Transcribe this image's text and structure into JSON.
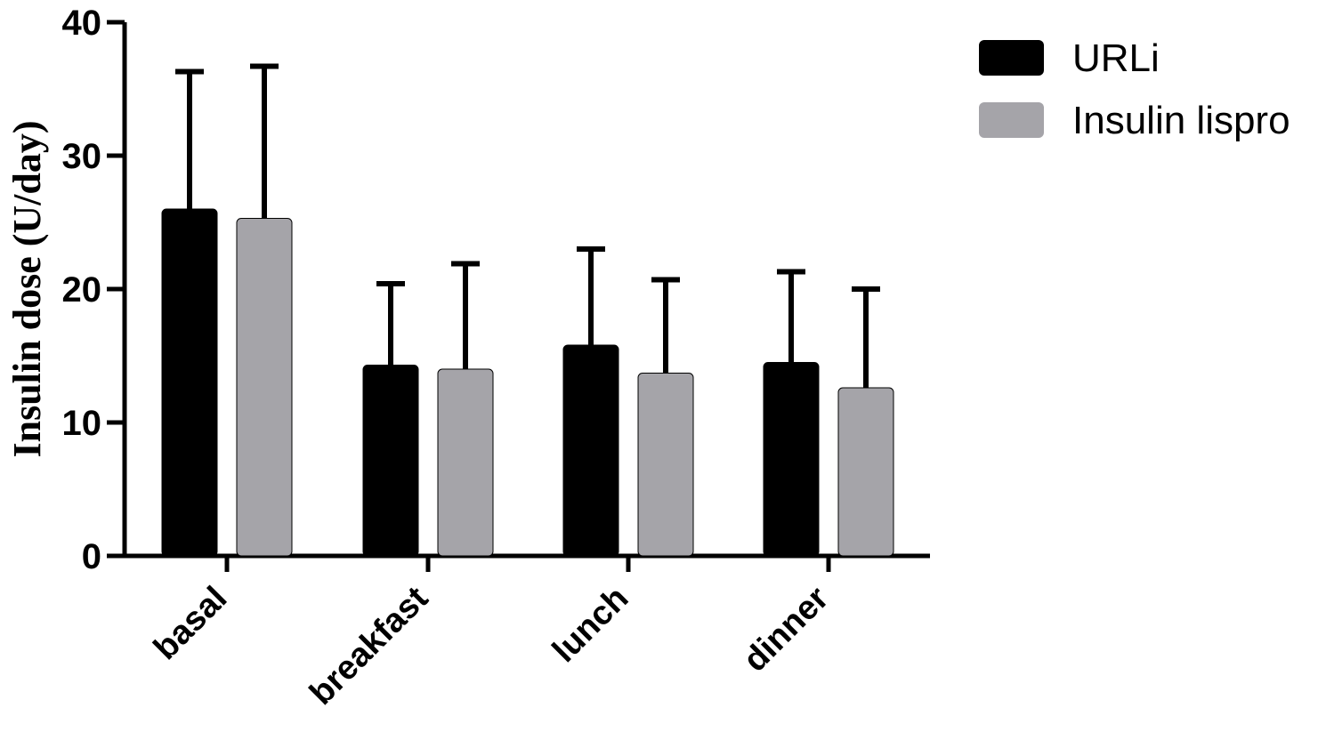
{
  "chart_data": {
    "type": "bar",
    "categories": [
      "basal",
      "breakfast",
      "lunch",
      "dinner"
    ],
    "series": [
      {
        "name": "URLi",
        "values": [
          26.0,
          14.3,
          15.8,
          14.5
        ],
        "errors": [
          10.3,
          6.1,
          7.2,
          6.8
        ],
        "color": "#000000"
      },
      {
        "name": "Insulin lispro",
        "values": [
          25.3,
          14.0,
          13.7,
          12.6
        ],
        "errors": [
          11.4,
          7.9,
          7.0,
          7.4
        ],
        "color": "#a5a4a9"
      }
    ],
    "title": "",
    "xlabel": "",
    "ylabel": "Insulin dose  (U/day)",
    "ylim": [
      0,
      40
    ],
    "yticks": [
      0,
      10,
      20,
      30,
      40
    ],
    "legend_position": "top-right",
    "grid": false
  }
}
